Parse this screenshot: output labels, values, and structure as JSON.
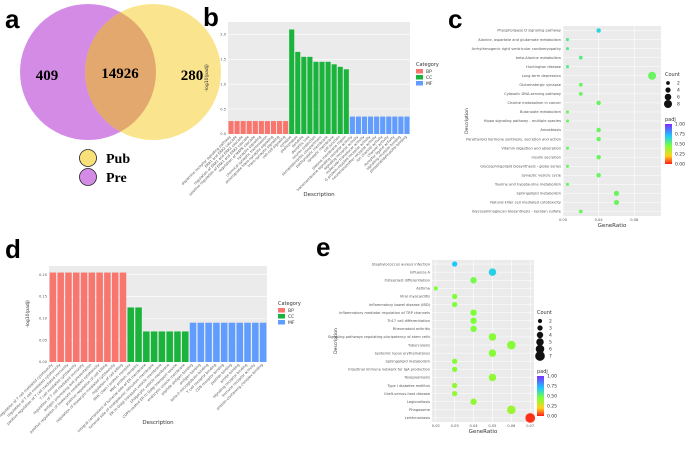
{
  "panels": {
    "a": "a",
    "b": "b",
    "c": "c",
    "d": "d",
    "e": "e"
  },
  "colors": {
    "venn_left": "#d38be6",
    "venn_right": "#f9e07a",
    "venn_overlap": "#e2a86e",
    "bp": "#f8766d",
    "cc": "#1ab33c",
    "mf": "#619cff"
  },
  "chart_data": [
    {
      "id": "a",
      "type": "venn",
      "sets": [
        {
          "name": "Pre",
          "only": 409
        },
        {
          "name": "Pub",
          "only": 280
        }
      ],
      "overlap": 14926,
      "legend": [
        "Pub",
        "Pre"
      ]
    },
    {
      "id": "b",
      "type": "bar",
      "xlabel": "Description",
      "ylabel": "-log10(padj)",
      "ylim": [
        0,
        2.25
      ],
      "yticks": [
        0.0,
        0.5,
        1.0,
        1.5,
        2.0
      ],
      "legend_title": "Category",
      "legend": [
        "BP",
        "CC",
        "MF"
      ],
      "bars": [
        {
          "label": "dopamine receptor signaling pathway",
          "value": 0.26,
          "category": "BP"
        },
        {
          "label": "ERK1 and ERK2 cascade",
          "value": 0.26,
          "category": "BP"
        },
        {
          "label": "regulation of ERK1 and ERK2 cascade",
          "value": 0.26,
          "category": "BP"
        },
        {
          "label": "positive regulation of ERK1 and ERK2 cascade",
          "value": 0.26,
          "category": "BP"
        },
        {
          "label": "regulation of MAPK cascade",
          "value": 0.26,
          "category": "BP"
        },
        {
          "label": "synaptic signaling",
          "value": 0.26,
          "category": "BP"
        },
        {
          "label": "chemical synaptic transmission",
          "value": 0.26,
          "category": "BP"
        },
        {
          "label": "anterograde trans-synaptic signaling",
          "value": 0.26,
          "category": "BP"
        },
        {
          "label": "trans-synaptic signaling",
          "value": 0.26,
          "category": "BP"
        },
        {
          "label": "cell-cell signaling",
          "value": 0.26,
          "category": "BP"
        },
        {
          "label": "synapse",
          "value": 2.1,
          "category": "CC"
        },
        {
          "label": "postsynapse",
          "value": 1.65,
          "category": "CC"
        },
        {
          "label": "dendrite",
          "value": 1.55,
          "category": "CC"
        },
        {
          "label": "dendritic tree",
          "value": 1.55,
          "category": "CC"
        },
        {
          "label": "neuron projection",
          "value": 1.45,
          "category": "CC"
        },
        {
          "label": "somatodendritic compartment",
          "value": 1.45,
          "category": "CC"
        },
        {
          "label": "postsynaptic membrane",
          "value": 1.45,
          "category": "CC"
        },
        {
          "label": "synaptic membrane",
          "value": 1.4,
          "category": "CC"
        },
        {
          "label": "cell junction",
          "value": 1.35,
          "category": "CC"
        },
        {
          "label": "plasma membrane region",
          "value": 1.3,
          "category": "CC"
        },
        {
          "label": "transmembrane signaling receptor activity",
          "value": 0.35,
          "category": "MF"
        },
        {
          "label": "signaling receptor activity",
          "value": 0.35,
          "category": "MF"
        },
        {
          "label": "molecular transducer activity",
          "value": 0.35,
          "category": "MF"
        },
        {
          "label": "G protein-coupled receptor activity",
          "value": 0.35,
          "category": "MF"
        },
        {
          "label": "neurotransmitter receptor activity",
          "value": 0.35,
          "category": "MF"
        },
        {
          "label": "ion channel activity",
          "value": 0.35,
          "category": "MF"
        },
        {
          "label": "channel activity",
          "value": 0.35,
          "category": "MF"
        },
        {
          "label": "receptor ligand activity",
          "value": 0.35,
          "category": "MF"
        },
        {
          "label": "signaling receptor binding",
          "value": 0.35,
          "category": "MF"
        },
        {
          "label": "phosphatidylinositol binding",
          "value": 0.35,
          "category": "MF"
        }
      ]
    },
    {
      "id": "c",
      "type": "scatter",
      "xlabel": "GeneRatio",
      "ylabel": "Description",
      "xlim": [
        0.0,
        0.11
      ],
      "xticks": [
        0.0,
        0.04,
        0.08
      ],
      "count_legend_title": "Count",
      "count_legend": [
        2,
        4,
        6,
        8
      ],
      "padj_legend_title": "padj",
      "padj_ticks": [
        1.0,
        0.75,
        0.5,
        0.25,
        0.0
      ],
      "points": [
        {
          "label": "Phospholipase D signaling pathway",
          "x": 0.04,
          "count": 3,
          "padj": 0.7
        },
        {
          "label": "Alanine, aspartate and glutamate metabolism",
          "x": 0.005,
          "count": 1,
          "padj": 0.6
        },
        {
          "label": "Arrhythmogenic right ventricular cardiomyopathy",
          "x": 0.005,
          "count": 1,
          "padj": 0.6
        },
        {
          "label": "beta-Alanine metabolism",
          "x": 0.02,
          "count": 2,
          "padj": 0.6
        },
        {
          "label": "Huntington disease",
          "x": 0.005,
          "count": 1,
          "padj": 0.6
        },
        {
          "label": "Long-term depression",
          "x": 0.1,
          "count": 8,
          "padj": 0.55
        },
        {
          "label": "Glutamatergic synapse",
          "x": 0.02,
          "count": 2,
          "padj": 0.55
        },
        {
          "label": "Cytosolic DNA-sensing pathway",
          "x": 0.02,
          "count": 2,
          "padj": 0.55
        },
        {
          "label": "Choline metabolism in cancer",
          "x": 0.04,
          "count": 3,
          "padj": 0.55
        },
        {
          "label": "Butanoate metabolism",
          "x": 0.005,
          "count": 1,
          "padj": 0.55
        },
        {
          "label": "Hippo signaling pathway - multiple species",
          "x": 0.005,
          "count": 1,
          "padj": 0.55
        },
        {
          "label": "Amoebiasis",
          "x": 0.04,
          "count": 3,
          "padj": 0.55
        },
        {
          "label": "Parathyroid hormone synthesis, secretion and action",
          "x": 0.04,
          "count": 3,
          "padj": 0.55
        },
        {
          "label": "Vitamin digestion and absorption",
          "x": 0.005,
          "count": 1,
          "padj": 0.55
        },
        {
          "label": "Insulin secretion",
          "x": 0.04,
          "count": 3,
          "padj": 0.55
        },
        {
          "label": "Glycosphingolipid biosynthesis - globo series",
          "x": 0.005,
          "count": 1,
          "padj": 0.55
        },
        {
          "label": "Synaptic vesicle cycle",
          "x": 0.04,
          "count": 3,
          "padj": 0.55
        },
        {
          "label": "Taurine and hypotaurine metabolism",
          "x": 0.005,
          "count": 1,
          "padj": 0.55
        },
        {
          "label": "Sphingolipid metabolism",
          "x": 0.06,
          "count": 4,
          "padj": 0.55
        },
        {
          "label": "Natural killer cell mediated cytotoxicity",
          "x": 0.06,
          "count": 4,
          "padj": 0.55
        },
        {
          "label": "Glycosaminoglycan biosynthesis - keratan sulfate",
          "x": 0.02,
          "count": 2,
          "padj": 0.55
        }
      ]
    },
    {
      "id": "d",
      "type": "bar",
      "xlabel": "Description",
      "ylabel": "-log10(padj)",
      "ylim": [
        0,
        0.22
      ],
      "yticks": [
        0.0,
        0.05,
        0.1,
        0.15,
        0.2
      ],
      "legend_title": "Category",
      "legend": [
        "BP",
        "CC",
        "MF"
      ],
      "bars": [
        {
          "label": "positive regulation of T cell mediated cytotoxicity",
          "value": 0.205,
          "category": "BP"
        },
        {
          "label": "regulation of T cell mediated cytotoxicity",
          "value": 0.205,
          "category": "BP"
        },
        {
          "label": "positive regulation of T cell mediated immunity",
          "value": 0.205,
          "category": "BP"
        },
        {
          "label": "T cell mediated cytotoxicity",
          "value": 0.205,
          "category": "BP"
        },
        {
          "label": "regulation of T cell mediated immunity",
          "value": 0.205,
          "category": "BP"
        },
        {
          "label": "antigen processing and presentation",
          "value": 0.205,
          "category": "BP"
        },
        {
          "label": "positive regulation of leukocyte mediated cytotoxicity",
          "value": 0.205,
          "category": "BP"
        },
        {
          "label": "positive regulation of cell killing",
          "value": 0.205,
          "category": "BP"
        },
        {
          "label": "regulation of leukocyte mediated cytotoxicity",
          "value": 0.205,
          "category": "BP"
        },
        {
          "label": "regulation of cell killing",
          "value": 0.205,
          "category": "BP"
        },
        {
          "label": "MHC class I protein complex",
          "value": 0.125,
          "category": "CC"
        },
        {
          "label": "MHC protein complex",
          "value": 0.125,
          "category": "CC"
        },
        {
          "label": "integral component of lumenal side of ER membrane",
          "value": 0.07,
          "category": "CC"
        },
        {
          "label": "lumenal side of endoplasmic reticulum membrane",
          "value": 0.07,
          "category": "CC"
        },
        {
          "label": "ER to Golgi transport vesicle membrane",
          "value": 0.07,
          "category": "CC"
        },
        {
          "label": "phagocytic vesicle membrane",
          "value": 0.07,
          "category": "CC"
        },
        {
          "label": "COPII-coated ER to Golgi transport vesicle",
          "value": 0.07,
          "category": "CC"
        },
        {
          "label": "endocytic vesicle membrane",
          "value": 0.07,
          "category": "CC"
        },
        {
          "label": "peptide antigen binding",
          "value": 0.09,
          "category": "MF"
        },
        {
          "label": "antigen binding",
          "value": 0.09,
          "category": "MF"
        },
        {
          "label": "beta-2-microglobulin binding",
          "value": 0.09,
          "category": "MF"
        },
        {
          "label": "T cell receptor binding",
          "value": 0.09,
          "category": "MF"
        },
        {
          "label": "CD8 receptor binding",
          "value": 0.09,
          "category": "MF"
        },
        {
          "label": "peptide binding",
          "value": 0.09,
          "category": "MF"
        },
        {
          "label": "amide binding",
          "value": 0.09,
          "category": "MF"
        },
        {
          "label": "signaling receptor binding",
          "value": 0.09,
          "category": "MF"
        },
        {
          "label": "immune receptor activity",
          "value": 0.09,
          "category": "MF"
        },
        {
          "label": "protein-containing complex binding",
          "value": 0.09,
          "category": "MF"
        }
      ]
    },
    {
      "id": "e",
      "type": "scatter",
      "xlabel": "GeneRatio",
      "ylabel": "Description",
      "xlim": [
        0.018,
        0.072
      ],
      "xticks": [
        0.02,
        0.03,
        0.04,
        0.05,
        0.06,
        0.07
      ],
      "count_legend_title": "Count",
      "count_legend": [
        2,
        3,
        4,
        5,
        6,
        7
      ],
      "padj_legend_title": "padj",
      "padj_ticks": [
        1.0,
        0.75,
        0.5,
        0.25,
        0.0
      ],
      "points": [
        {
          "label": "Staphylococcus aureus infection",
          "x": 0.03,
          "count": 3,
          "padj": 0.75
        },
        {
          "label": "Influenza A",
          "x": 0.05,
          "count": 5,
          "padj": 0.72
        },
        {
          "label": "Osteoclast differentiation",
          "x": 0.04,
          "count": 4,
          "padj": 0.52
        },
        {
          "label": "Asthma",
          "x": 0.02,
          "count": 2,
          "padj": 0.5
        },
        {
          "label": "Viral myocarditis",
          "x": 0.03,
          "count": 3,
          "padj": 0.5
        },
        {
          "label": "Inflammatory bowel disease (IBD)",
          "x": 0.03,
          "count": 3,
          "padj": 0.5
        },
        {
          "label": "Inflammatory mediator regulation of TRP channels",
          "x": 0.04,
          "count": 4,
          "padj": 0.5
        },
        {
          "label": "Th17 cell differentiation",
          "x": 0.04,
          "count": 4,
          "padj": 0.5
        },
        {
          "label": "Rheumatoid arthritis",
          "x": 0.04,
          "count": 4,
          "padj": 0.5
        },
        {
          "label": "Signaling pathways regulating pluripotency of stem cells",
          "x": 0.05,
          "count": 5,
          "padj": 0.48
        },
        {
          "label": "Tuberculosis",
          "x": 0.06,
          "count": 6,
          "padj": 0.48
        },
        {
          "label": "Systemic lupus erythematosus",
          "x": 0.05,
          "count": 5,
          "padj": 0.48
        },
        {
          "label": "Sphingolipid metabolism",
          "x": 0.03,
          "count": 3,
          "padj": 0.48
        },
        {
          "label": "Intestinal immune network for IgA production",
          "x": 0.03,
          "count": 3,
          "padj": 0.48
        },
        {
          "label": "Toxoplasmosis",
          "x": 0.05,
          "count": 5,
          "padj": 0.46
        },
        {
          "label": "Type I diabetes mellitus",
          "x": 0.03,
          "count": 3,
          "padj": 0.46
        },
        {
          "label": "Graft-versus-host disease",
          "x": 0.03,
          "count": 3,
          "padj": 0.46
        },
        {
          "label": "Legionellosis",
          "x": 0.04,
          "count": 4,
          "padj": 0.46
        },
        {
          "label": "Phagosome",
          "x": 0.06,
          "count": 6,
          "padj": 0.44
        },
        {
          "label": "Leishmaniasis",
          "x": 0.07,
          "count": 7,
          "padj": 0.03
        }
      ]
    }
  ]
}
